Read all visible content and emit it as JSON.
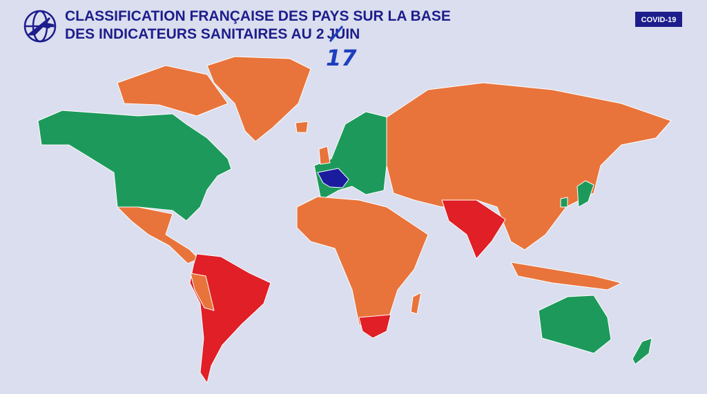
{
  "header": {
    "title_line1": "CLASSIFICATION FRANÇAISE DES PAYS SUR LA BASE",
    "title_line2_prefix": "DES INDICATEURS SANITAIRES AU",
    "struck_day": "2",
    "title_line2_suffix": "JUIN",
    "handwritten_day": "17",
    "badge": "COVID-19"
  }
}
